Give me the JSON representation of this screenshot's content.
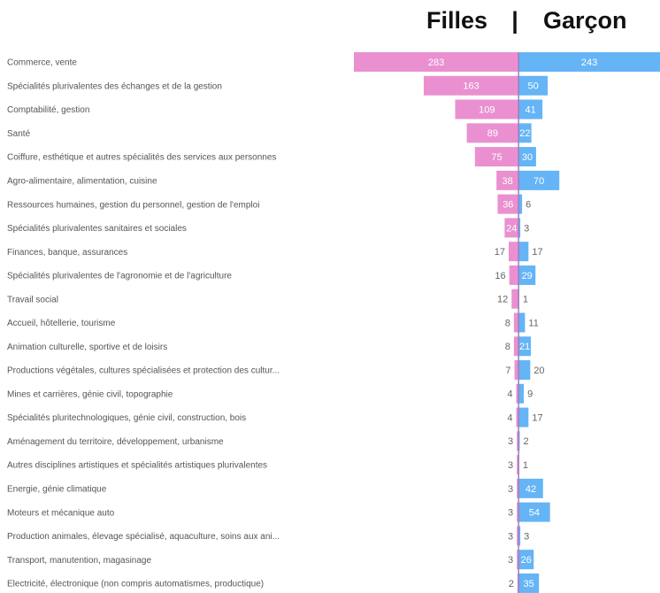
{
  "chart_data": {
    "type": "bar",
    "orientation": "diverging-horizontal",
    "legend_separator": "|",
    "categories": [
      "Commerce, vente",
      "Spécialités plurivalentes des échanges et de la gestion",
      "Comptabilité, gestion",
      "Santé",
      "Coiffure, esthétique et autres spécialités des services aux personnes",
      "Agro-alimentaire, alimentation, cuisine",
      "Ressources humaines, gestion du personnel, gestion de l'emploi",
      "Spécialités plurivalentes sanitaires et sociales",
      "Finances, banque, assurances",
      "Spécialités plurivalentes de l'agronomie et de l'agriculture",
      "Travail social",
      "Accueil, hôtellerie, tourisme",
      "Animation culturelle, sportive et de loisirs",
      "Productions végétales, cultures spécialisées et protection des cultur...",
      "Mines et carrières, génie civil, topographie",
      "Spécialités pluritechnologiques, génie civil, construction, bois",
      "Aménagement du territoire, développement, urbanisme",
      "Autres disciplines artistiques et spécialités artistiques plurivalentes",
      "Energie, génie climatique",
      "Moteurs et mécanique auto",
      "Production animales, élevage spécialisé, aquaculture, soins aux ani...",
      "Transport, manutention, magasinage",
      "Electricité, électronique (non compris automatismes, productique)"
    ],
    "series": [
      {
        "name": "Filles",
        "color": "#ea90d0",
        "values": [
          283,
          163,
          109,
          89,
          75,
          38,
          36,
          24,
          17,
          16,
          12,
          8,
          8,
          7,
          4,
          4,
          3,
          3,
          3,
          3,
          3,
          3,
          2
        ]
      },
      {
        "name": "Garçon",
        "color": "#64b4f6",
        "values": [
          243,
          50,
          41,
          22,
          30,
          70,
          6,
          3,
          17,
          29,
          1,
          11,
          21,
          20,
          9,
          17,
          2,
          1,
          42,
          54,
          3,
          26,
          35
        ]
      }
    ],
    "xlim": [
      -283,
      243
    ]
  }
}
